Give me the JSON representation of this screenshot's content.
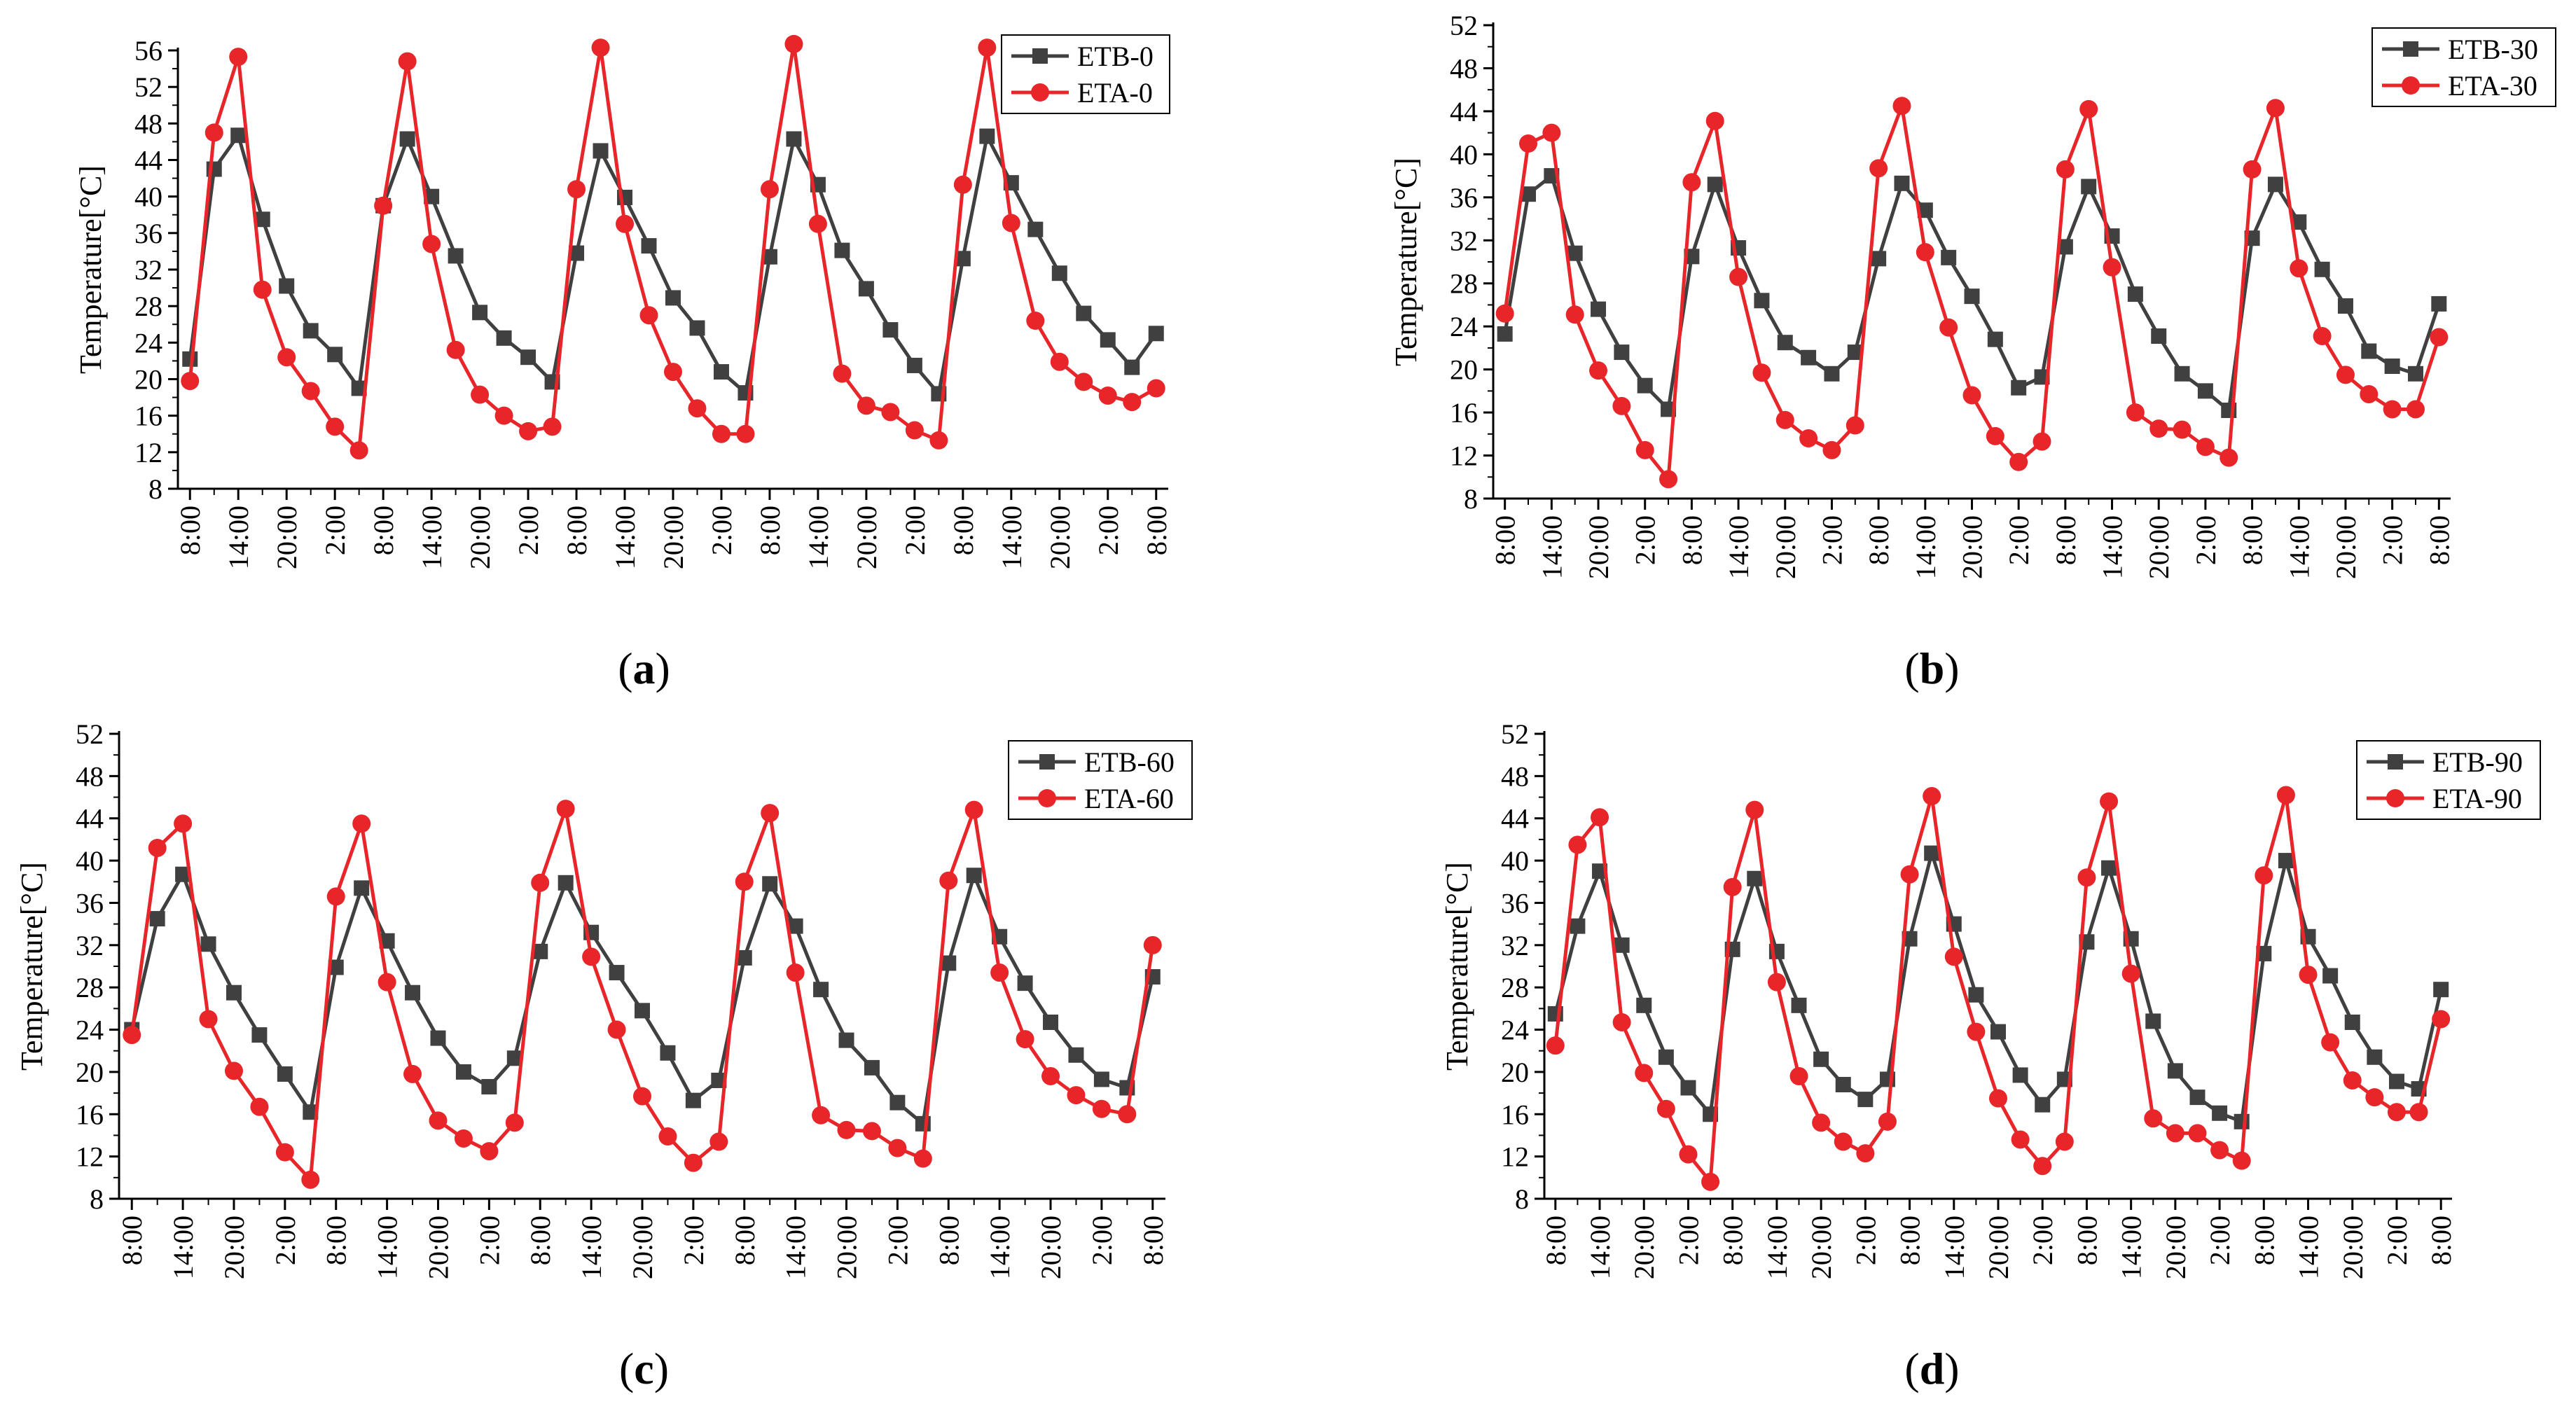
{
  "x_tick_labels": [
    "8:00",
    "14:00",
    "20:00",
    "2:00",
    "8:00",
    "14:00",
    "20:00",
    "2:00",
    "8:00",
    "14:00",
    "20:00",
    "2:00",
    "8:00",
    "14:00",
    "20:00",
    "2:00",
    "8:00",
    "14:00",
    "20:00",
    "2:00",
    "8:00"
  ],
  "y_axis_label": "Temperature[°C]",
  "colors": {
    "etb": "#404040",
    "eta": "#e8262a"
  },
  "chart_data": [
    {
      "panel": "a",
      "caption": "a",
      "type": "line",
      "ylabel": "Temperature[°C]",
      "ylim": [
        8,
        56
      ],
      "yticks": [
        8,
        12,
        16,
        20,
        24,
        28,
        32,
        36,
        40,
        44,
        48,
        52,
        56
      ],
      "legend_position": "top-right",
      "series": [
        {
          "name": "ETB-0",
          "marker": "square",
          "color": "#404040",
          "values": [
            22.2,
            43.0,
            46.7,
            37.5,
            30.2,
            25.3,
            22.7,
            19.0,
            39.0,
            46.3,
            40.0,
            33.5,
            27.3,
            24.5,
            22.4,
            19.7,
            33.8,
            45.0,
            39.9,
            34.6,
            28.9,
            25.6,
            20.8,
            18.5,
            33.4,
            46.3,
            41.3,
            34.1,
            29.9,
            25.4,
            21.5,
            18.4,
            33.2,
            46.6,
            41.5,
            36.4,
            31.6,
            27.2,
            24.3,
            21.3,
            25.0
          ]
        },
        {
          "name": "ETA-0",
          "marker": "circle",
          "color": "#e8262a",
          "values": [
            19.8,
            47.0,
            55.3,
            29.8,
            22.4,
            18.7,
            14.8,
            12.2,
            39.0,
            54.8,
            34.8,
            23.2,
            18.3,
            16.0,
            14.3,
            14.8,
            40.8,
            56.3,
            37.0,
            27.0,
            20.8,
            16.8,
            14.0,
            14.0,
            40.8,
            56.7,
            37.0,
            20.6,
            17.1,
            16.4,
            14.4,
            13.3,
            41.3,
            56.3,
            37.1,
            26.4,
            21.9,
            19.7,
            18.2,
            17.5,
            19.0
          ]
        }
      ]
    },
    {
      "panel": "b",
      "caption": "b",
      "type": "line",
      "ylabel": "Temperature[°C]",
      "ylim": [
        8,
        52
      ],
      "yticks": [
        8,
        12,
        16,
        20,
        24,
        28,
        32,
        36,
        40,
        44,
        48,
        52
      ],
      "legend_position": "top-right",
      "series": [
        {
          "name": "ETB-30",
          "marker": "square",
          "color": "#404040",
          "values": [
            23.3,
            36.3,
            38.0,
            30.8,
            25.6,
            21.6,
            18.5,
            16.3,
            30.5,
            37.2,
            31.3,
            26.4,
            22.5,
            21.1,
            19.6,
            21.6,
            30.3,
            37.3,
            34.8,
            30.4,
            26.8,
            22.8,
            18.3,
            19.3,
            31.4,
            37.0,
            32.4,
            27.0,
            23.1,
            19.6,
            18.0,
            16.2,
            32.2,
            37.2,
            33.7,
            29.3,
            25.9,
            21.7,
            20.3,
            19.6,
            26.1
          ]
        },
        {
          "name": "ETA-30",
          "marker": "circle",
          "color": "#e8262a",
          "values": [
            25.2,
            41.0,
            42.0,
            25.1,
            19.9,
            16.6,
            12.5,
            9.8,
            37.4,
            43.1,
            28.6,
            19.7,
            15.3,
            13.6,
            12.5,
            14.8,
            38.7,
            44.5,
            30.9,
            23.9,
            17.6,
            13.8,
            11.4,
            13.3,
            38.6,
            44.2,
            29.5,
            16.0,
            14.5,
            14.4,
            12.8,
            11.8,
            38.6,
            44.3,
            29.4,
            23.1,
            19.5,
            17.7,
            16.3,
            16.3,
            23.0
          ]
        }
      ]
    },
    {
      "panel": "c",
      "caption": "c",
      "type": "line",
      "ylabel": "Temperature[°C]",
      "ylim": [
        8,
        52
      ],
      "yticks": [
        8,
        12,
        16,
        20,
        24,
        28,
        32,
        36,
        40,
        44,
        48,
        52
      ],
      "legend_position": "top-right",
      "series": [
        {
          "name": "ETB-60",
          "marker": "square",
          "color": "#404040",
          "values": [
            24.0,
            34.5,
            38.7,
            32.1,
            27.5,
            23.5,
            19.8,
            16.2,
            29.9,
            37.4,
            32.4,
            27.5,
            23.2,
            20.0,
            18.6,
            21.3,
            31.4,
            37.9,
            33.2,
            29.4,
            25.8,
            21.8,
            17.3,
            19.2,
            30.8,
            37.8,
            33.8,
            27.8,
            23.0,
            20.4,
            17.1,
            15.1,
            30.3,
            38.6,
            32.8,
            28.4,
            24.7,
            21.6,
            19.3,
            18.5,
            29.0
          ]
        },
        {
          "name": "ETA-60",
          "marker": "circle",
          "color": "#e8262a",
          "values": [
            23.5,
            41.2,
            43.5,
            25.0,
            20.1,
            16.7,
            12.4,
            9.8,
            36.6,
            43.5,
            28.5,
            19.8,
            15.4,
            13.7,
            12.5,
            15.2,
            37.9,
            44.9,
            30.9,
            24.0,
            17.7,
            13.9,
            11.4,
            13.4,
            38.0,
            44.5,
            29.4,
            15.9,
            14.5,
            14.4,
            12.8,
            11.8,
            38.1,
            44.8,
            29.4,
            23.1,
            19.6,
            17.8,
            16.5,
            16.0,
            32.0
          ]
        }
      ]
    },
    {
      "panel": "d",
      "caption": "d",
      "type": "line",
      "ylabel": "Temperature[°C]",
      "ylim": [
        8,
        52
      ],
      "yticks": [
        8,
        12,
        16,
        20,
        24,
        28,
        32,
        36,
        40,
        44,
        48,
        52
      ],
      "legend_position": "top-right",
      "series": [
        {
          "name": "ETB-90",
          "marker": "square",
          "color": "#404040",
          "values": [
            25.5,
            33.8,
            39.0,
            32.0,
            26.3,
            21.4,
            18.5,
            16.0,
            31.6,
            38.3,
            31.4,
            26.3,
            21.2,
            18.8,
            17.4,
            19.3,
            32.6,
            40.7,
            34.0,
            27.3,
            23.8,
            19.7,
            16.9,
            19.3,
            32.3,
            39.3,
            32.6,
            24.8,
            20.1,
            17.6,
            16.1,
            15.3,
            31.2,
            40.0,
            32.8,
            29.1,
            24.7,
            21.4,
            19.1,
            18.4,
            27.8
          ]
        },
        {
          "name": "ETA-90",
          "marker": "circle",
          "color": "#e8262a",
          "values": [
            22.5,
            41.5,
            44.1,
            24.7,
            19.9,
            16.5,
            12.2,
            9.6,
            37.5,
            44.8,
            28.5,
            19.6,
            15.2,
            13.4,
            12.3,
            15.3,
            38.7,
            46.1,
            30.9,
            23.8,
            17.5,
            13.6,
            11.1,
            13.4,
            38.4,
            45.6,
            29.3,
            15.6,
            14.2,
            14.2,
            12.6,
            11.6,
            38.6,
            46.2,
            29.2,
            22.8,
            19.2,
            17.6,
            16.2,
            16.2,
            25.0
          ]
        }
      ]
    }
  ]
}
